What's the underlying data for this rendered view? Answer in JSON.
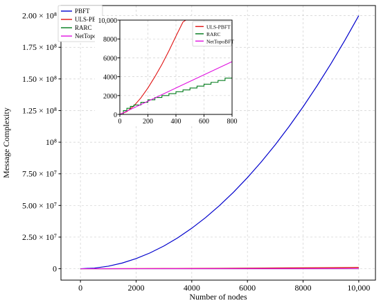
{
  "chart_data": [
    {
      "type": "line",
      "xlabel": "Number of nodes",
      "ylabel": "Message Complexity",
      "xlim": [
        -700,
        10600
      ],
      "ylim": [
        -9000000,
        208000000
      ],
      "xticks": [
        0,
        2000,
        4000,
        6000,
        8000,
        10000
      ],
      "xtick_labels": [
        "0",
        "2000",
        "4000",
        "6000",
        "8000",
        "10,000"
      ],
      "yticks": [
        0,
        25000000,
        50000000,
        75000000,
        100000000,
        125000000,
        150000000,
        175000000,
        200000000
      ],
      "ytick_labels": [
        "0",
        "2.50 × 10⁷",
        "5.00 × 10⁷",
        "7.50 × 10⁷",
        "10⁸",
        "1.25 × 10⁸",
        "1.50 × 10⁸",
        "1.75 × 10⁸",
        "2.00 × 10⁸"
      ],
      "grid": true,
      "legend_position": "top-left",
      "series": [
        {
          "name": "PBFT",
          "color": "#0000cc",
          "x": [
            0,
            500,
            1000,
            1500,
            2000,
            2500,
            3000,
            3500,
            4000,
            4500,
            5000,
            5500,
            6000,
            6500,
            7000,
            7500,
            8000,
            8500,
            9000,
            9500,
            10000
          ],
          "y": [
            0,
            500000,
            2000000,
            4500000,
            8000000,
            12500000,
            18000000,
            24500000,
            32000000,
            40500000,
            50000000,
            60500000,
            72000000,
            84500000,
            98000000,
            112500000,
            128000000,
            144500000,
            162000000,
            180500000,
            200000000
          ]
        },
        {
          "name": "ULS-PBFT",
          "color": "#e01010",
          "x": [
            0,
            1000,
            2000,
            3000,
            4000,
            5000,
            6000,
            7000,
            8000,
            9000,
            10000
          ],
          "y": [
            0,
            30000,
            90000,
            170000,
            260000,
            360000,
            480000,
            600000,
            730000,
            880000,
            1050000
          ]
        },
        {
          "name": "RARC",
          "color": "#007a1a",
          "x": [
            0,
            2000,
            4000,
            6000,
            8000,
            10000
          ],
          "y": [
            0,
            10000,
            20000,
            30000,
            40000,
            50000
          ]
        },
        {
          "name": "NetTopoBFT",
          "color": "#e010e0",
          "x": [
            0,
            2000,
            4000,
            6000,
            8000,
            10000
          ],
          "y": [
            0,
            14000,
            28000,
            42000,
            56000,
            70000
          ]
        }
      ]
    },
    {
      "type": "line",
      "inset": true,
      "xlim": [
        0,
        800
      ],
      "ylim": [
        0,
        10000
      ],
      "xticks": [
        0,
        200,
        400,
        600,
        800
      ],
      "xtick_labels": [
        "0",
        "200",
        "400",
        "600",
        "800"
      ],
      "yticks": [
        0,
        2000,
        4000,
        6000,
        8000,
        10000
      ],
      "ytick_labels": [
        "0",
        "2000",
        "4000",
        "6000",
        "8000",
        "10,000"
      ],
      "grid": true,
      "legend_position": "top-right",
      "series": [
        {
          "name": "ULS-PBFT",
          "color": "#e01010",
          "x": [
            0,
            50,
            100,
            150,
            200,
            250,
            300,
            350,
            400,
            450,
            470
          ],
          "y": [
            0,
            300,
            900,
            1750,
            2800,
            4000,
            5300,
            6750,
            8300,
            9800,
            10000
          ]
        },
        {
          "name": "RARC",
          "color": "#007a1a",
          "x": [
            0,
            25,
            50,
            75,
            100,
            150,
            200,
            250,
            300,
            350,
            400,
            450,
            500,
            550,
            600,
            650,
            700,
            750,
            800
          ],
          "y": [
            0,
            400,
            650,
            850,
            1000,
            1280,
            1550,
            1800,
            2000,
            2200,
            2400,
            2600,
            2800,
            3000,
            3200,
            3400,
            3600,
            3850,
            4000
          ]
        },
        {
          "name": "NetTopoBFT",
          "color": "#e010e0",
          "x": [
            0,
            100,
            200,
            300,
            400,
            500,
            600,
            700,
            800
          ],
          "y": [
            0,
            700,
            1400,
            2100,
            2800,
            3500,
            4200,
            4900,
            5600
          ]
        }
      ]
    }
  ]
}
